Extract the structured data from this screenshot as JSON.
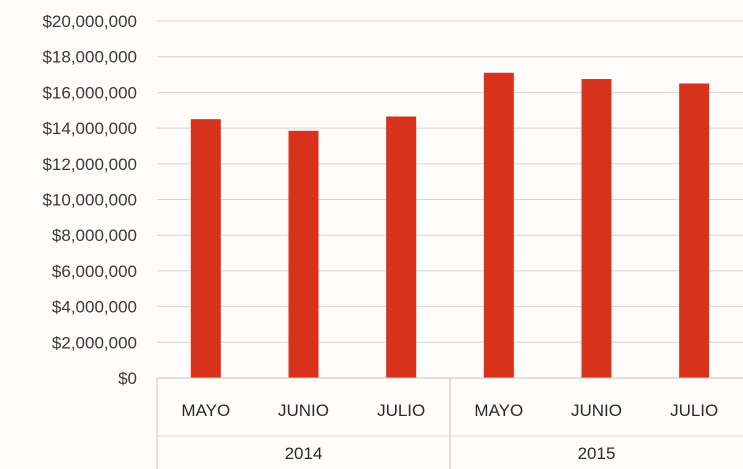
{
  "chart_data": {
    "type": "bar",
    "title": "",
    "xlabel": "",
    "ylabel": "",
    "ylim": [
      0,
      20000000
    ],
    "y_ticks": [
      "$0",
      "$2,000,000",
      "$4,000,000",
      "$6,000,000",
      "$8,000,000",
      "$10,000,000",
      "$12,000,000",
      "$14,000,000",
      "$16,000,000",
      "$18,000,000",
      "$20,000,000"
    ],
    "groups": [
      {
        "label": "2014",
        "categories": [
          "MAYO",
          "JUNIO",
          "JULIO"
        ]
      },
      {
        "label": "2015",
        "categories": [
          "MAYO",
          "JUNIO",
          "JULIO"
        ]
      }
    ],
    "categories": [
      "MAYO",
      "JUNIO",
      "JULIO",
      "MAYO",
      "JUNIO",
      "JULIO"
    ],
    "values": [
      14500000,
      13850000,
      14650000,
      17100000,
      16750000,
      16500000
    ],
    "bar_color": "#d8321c",
    "grid": true,
    "legend": "none"
  }
}
